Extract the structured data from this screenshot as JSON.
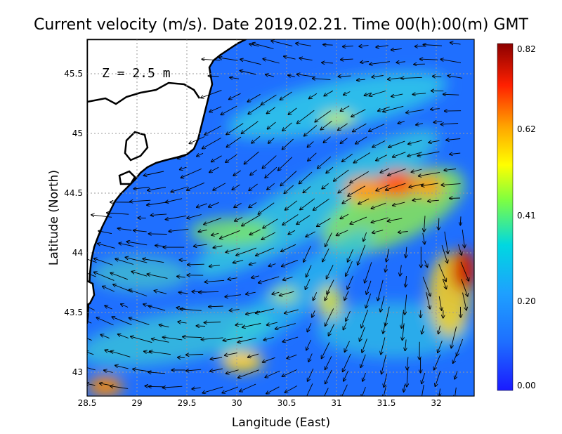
{
  "title": "Current velocity (m/s). Date 2019.02.21. Time 00(h):00(m) GMT",
  "depth_label": "Z = 2.5 m",
  "x_axis": {
    "label": "Langitude (East)",
    "ticks": [
      "28.5",
      "29",
      "29.5",
      "30",
      "30.5",
      "31",
      "31.5",
      "32"
    ]
  },
  "y_axis": {
    "label": "Latitude (North)",
    "ticks": [
      "43",
      "43.5",
      "44",
      "44.5",
      "45",
      "45.5"
    ]
  },
  "colorbar": {
    "ticks": [
      "0.00",
      "0.20",
      "0.41",
      "0.62",
      "0.82"
    ],
    "range": [
      0.0,
      0.82
    ],
    "colors": [
      "#1a1aff",
      "#1e90ff",
      "#00ced1",
      "#7fff00",
      "#ffff00",
      "#ffa500",
      "#ff2000",
      "#8b0000"
    ]
  },
  "map": {
    "lon_range": [
      28.5,
      32.4
    ],
    "lat_range": [
      42.8,
      45.8
    ],
    "land_color": "#ffffff",
    "sea_base_color": "#1f6fff",
    "coastline_color": "#000000",
    "grid": "dotted",
    "high_speed_zones": [
      {
        "lon": 31.3,
        "lat": 44.5,
        "speed": 0.62
      },
      {
        "lon": 31.65,
        "lat": 44.55,
        "speed": 0.7
      },
      {
        "lon": 31.95,
        "lat": 44.55,
        "speed": 0.6
      },
      {
        "lon": 32.3,
        "lat": 43.95,
        "speed": 0.8
      },
      {
        "lon": 30.1,
        "lat": 44.3,
        "speed": 0.5
      },
      {
        "lon": 31.0,
        "lat": 45.2,
        "speed": 0.45
      },
      {
        "lon": 28.7,
        "lat": 42.85,
        "speed": 0.6
      },
      {
        "lon": 30.05,
        "lat": 43.05,
        "speed": 0.5
      }
    ]
  }
}
